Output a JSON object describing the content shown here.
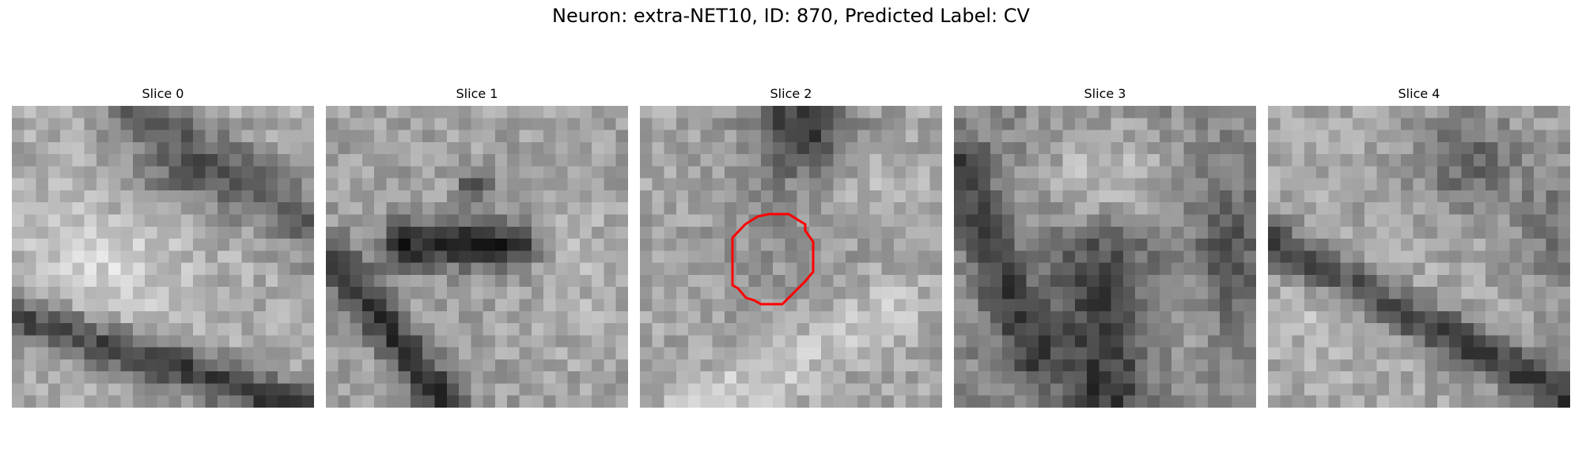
{
  "title": "Neuron: extra-NET10, ID: 870, Predicted Label: CV",
  "panels": [
    {
      "label": "Slice 0"
    },
    {
      "label": "Slice 1"
    },
    {
      "label": "Slice 2",
      "has_outline": true
    },
    {
      "label": "Slice 3"
    },
    {
      "label": "Slice 4"
    }
  ],
  "outline_color": "#ff0000"
}
